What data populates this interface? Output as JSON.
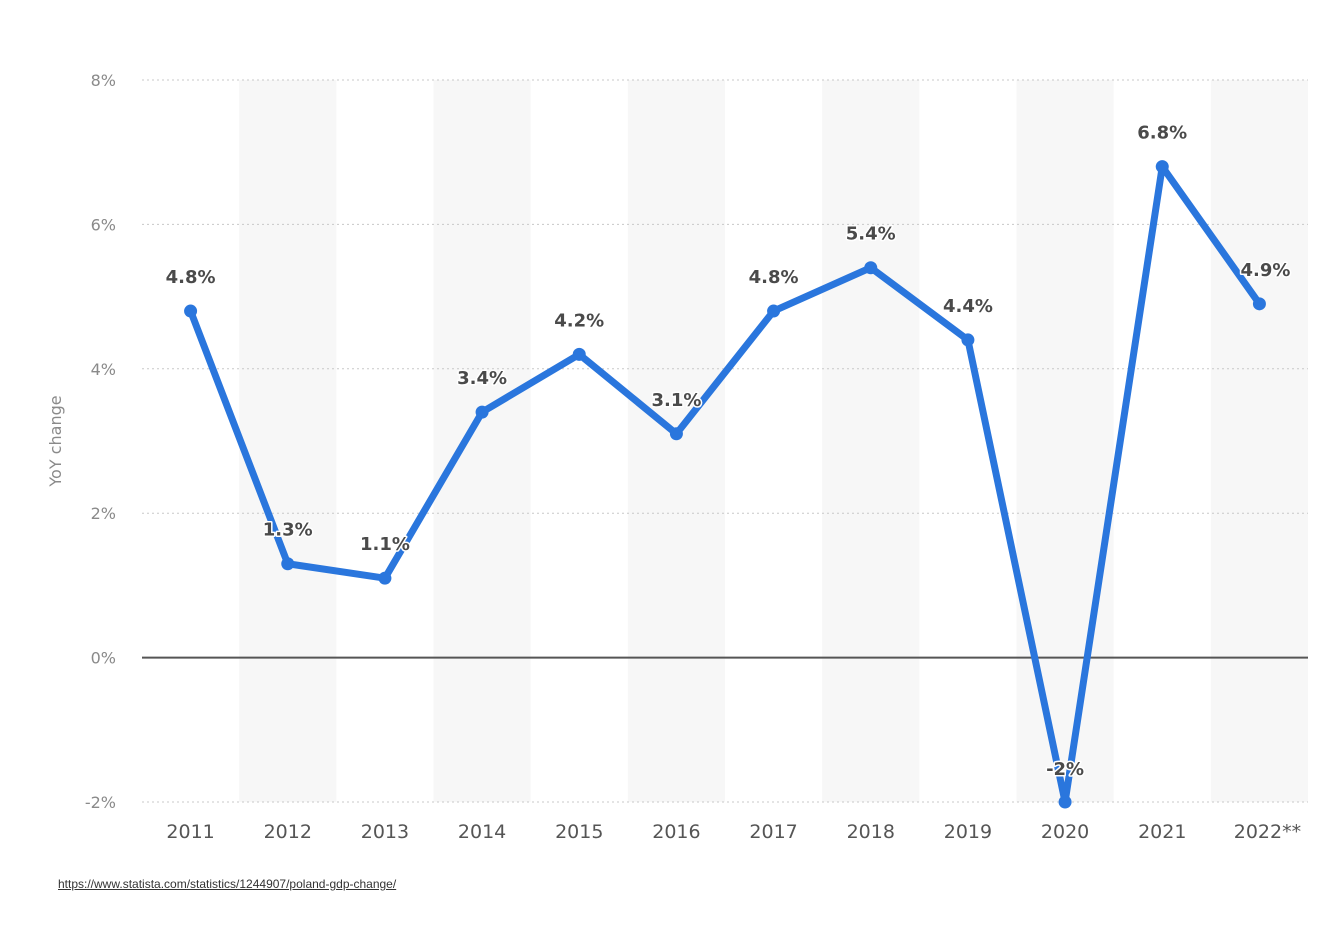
{
  "chart_data": {
    "type": "line",
    "categories": [
      "2011",
      "2012",
      "2013",
      "2014",
      "2015",
      "2016",
      "2017",
      "2018",
      "2019",
      "2020",
      "2021",
      "2022**"
    ],
    "series": [
      {
        "values": [
          4.8,
          1.3,
          1.1,
          3.4,
          4.2,
          3.1,
          4.8,
          5.4,
          4.4,
          -2,
          6.8,
          4.9
        ],
        "labels": [
          "4.8%",
          "1.3%",
          "1.1%",
          "3.4%",
          "4.2%",
          "3.1%",
          "4.8%",
          "5.4%",
          "4.4%",
          "-2%",
          "6.8%",
          "4.9%"
        ],
        "color": "#2a76dd"
      }
    ],
    "ylabel": "YoY change",
    "ylim": [
      -2,
      8
    ],
    "yticks": [
      8,
      6,
      4,
      2,
      0,
      -2
    ],
    "ytick_labels": [
      "8%",
      "6%",
      "4%",
      "2%",
      "0%",
      "-2%"
    ],
    "grid": true,
    "alternate_band_color": "#f7f7f7",
    "zero_line_color": "#555555"
  },
  "source": {
    "url_text": "https://www.statista.com/statistics/1244907/poland-gdp-change/"
  }
}
